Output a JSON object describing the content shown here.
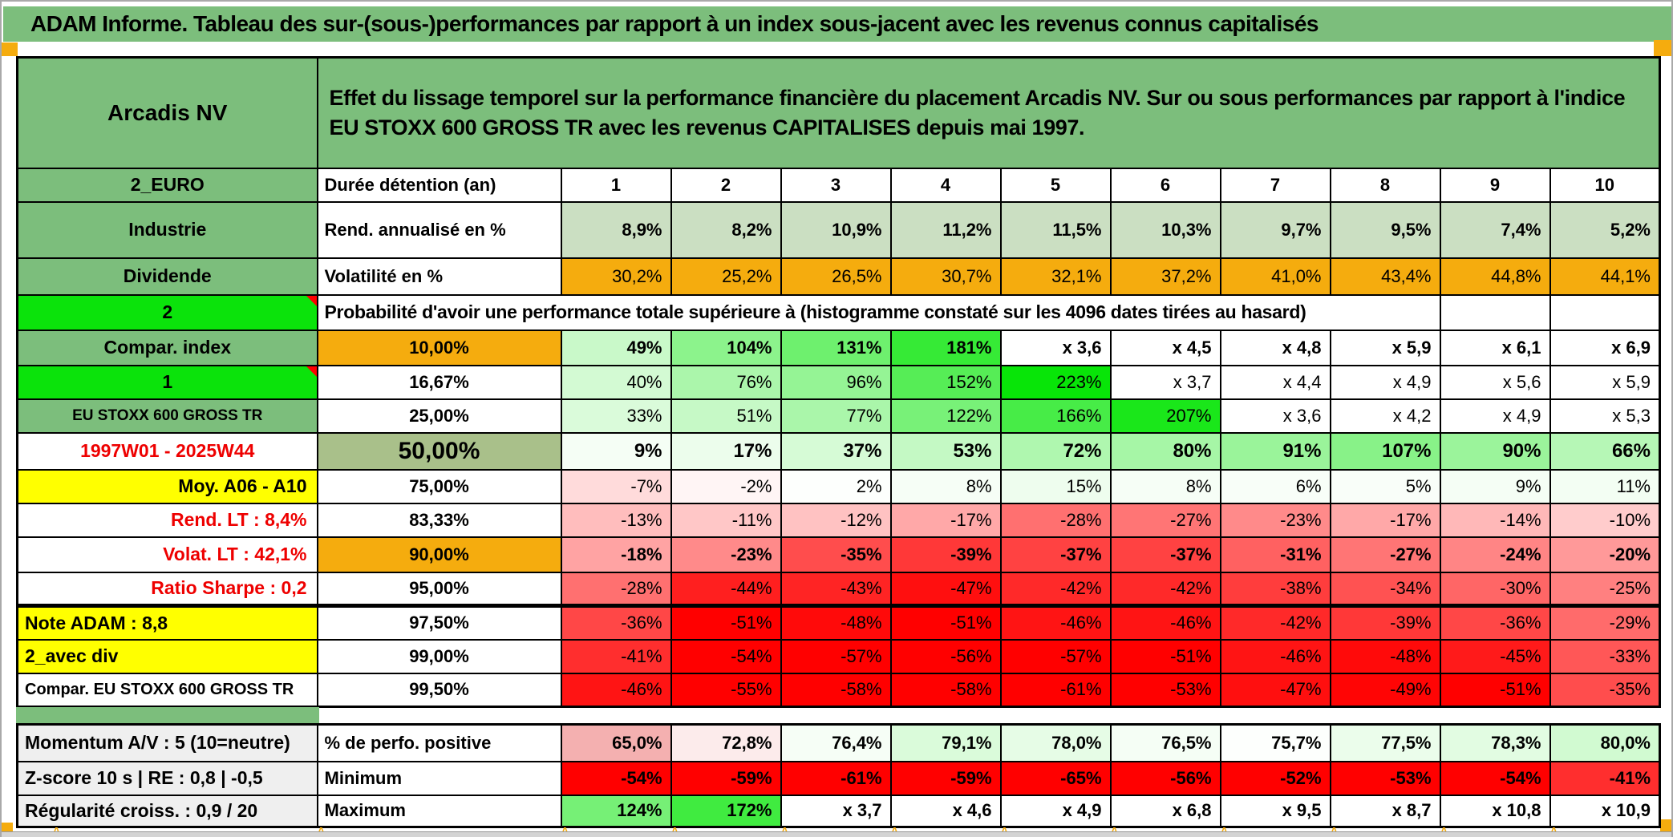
{
  "title": "ADAM Informe. Tableau des sur-(sous-)performances par rapport à un index sous-jacent avec les revenus connus capitalisés",
  "sheet": {
    "instrument": "Arcadis NV",
    "description": "Effet du lissage temporel sur la performance financière du placement Arcadis NV. Sur ou sous performances par rapport à l'indice EU STOXX 600 GROSS TR avec les revenus CAPITALISES depuis mai 1997.",
    "columns": [
      "1",
      "2",
      "3",
      "4",
      "5",
      "6",
      "7",
      "8",
      "9",
      "10"
    ],
    "prob_header": "Probabilité d'avoir une performance totale supérieure à (histogramme constaté sur les 4096 dates tirées au hasard)",
    "rows": [
      {
        "label": "2_EURO",
        "labelBg": "green",
        "header": "Durée détention (an)",
        "headerBg": "white",
        "headerAlign": "left",
        "cells": [
          "1",
          "2",
          "3",
          "4",
          "5",
          "6",
          "7",
          "8",
          "9",
          "10"
        ],
        "fill": "none",
        "bold": true,
        "cellAlign": "center"
      },
      {
        "label": "Industrie",
        "labelBg": "green",
        "header": "Rend. annualisé en %",
        "headerBg": "white",
        "headerAlign": "left",
        "cells": [
          "8,9%",
          "8,2%",
          "10,9%",
          "11,2%",
          "11,5%",
          "10,3%",
          "9,7%",
          "9,5%",
          "7,4%",
          "5,2%"
        ],
        "fill": "sage",
        "bold": true
      },
      {
        "label": "Dividende",
        "labelBg": "green",
        "header": "Volatilité en %",
        "headerBg": "white",
        "headerAlign": "left",
        "cells": [
          "30,2%",
          "25,2%",
          "26,5%",
          "30,7%",
          "32,1%",
          "37,2%",
          "41,0%",
          "43,4%",
          "44,8%",
          "44,1%"
        ],
        "fill": "orange",
        "bold": false
      },
      {
        "label": "2",
        "labelBg": "bright",
        "note": true,
        "span": true,
        "spanCols": 9,
        "tailEmpty": 2
      },
      {
        "label": "Compar. index",
        "labelBg": "green",
        "header": "10,00%",
        "headerBg": "orange",
        "cells": [
          "49%",
          "104%",
          "131%",
          "181%",
          "x 3,6",
          "x 4,5",
          "x 4,8",
          "x 5,9",
          "x 6,1",
          "x 6,9"
        ],
        "fill": "heat",
        "bold": true
      },
      {
        "label": "1",
        "labelBg": "bright",
        "note": true,
        "header": "16,67%",
        "headerBg": "white",
        "cells": [
          "40%",
          "76%",
          "96%",
          "152%",
          "223%",
          "x 3,7",
          "x 4,4",
          "x 4,9",
          "x 5,6",
          "x 5,9"
        ],
        "fill": "heat",
        "bold": false
      },
      {
        "label": "EU STOXX 600 GROSS TR",
        "labelBg": "green",
        "labelSize": 19,
        "header": "25,00%",
        "headerBg": "white",
        "cells": [
          "33%",
          "51%",
          "77%",
          "122%",
          "166%",
          "207%",
          "x 3,6",
          "x 4,2",
          "x 4,9",
          "x 5,3"
        ],
        "fill": "heat",
        "bold": false
      },
      {
        "label": "1997W01 - 2025W44",
        "labelBg": "white",
        "labelColor": "red",
        "header": "50,00%",
        "headerBg": "olive",
        "headerSize": 30,
        "cells": [
          "9%",
          "17%",
          "37%",
          "53%",
          "72%",
          "80%",
          "91%",
          "107%",
          "90%",
          "66%"
        ],
        "fill": "heat",
        "bold": true,
        "cellSize": 24
      },
      {
        "label": "Moy. A06 - A10",
        "labelBg": "yellow",
        "labelAlign": "right",
        "header": "75,00%",
        "headerBg": "white",
        "cells": [
          "-7%",
          "-2%",
          "2%",
          "8%",
          "15%",
          "8%",
          "6%",
          "5%",
          "9%",
          "11%"
        ],
        "fill": "heat",
        "bold": false
      },
      {
        "label": "Rend. LT :  8,4%",
        "labelBg": "white",
        "labelColor": "red",
        "labelAlign": "right",
        "header": "83,33%",
        "headerBg": "white",
        "cells": [
          "-13%",
          "-11%",
          "-12%",
          "-17%",
          "-28%",
          "-27%",
          "-23%",
          "-17%",
          "-14%",
          "-10%"
        ],
        "fill": "heat",
        "bold": false
      },
      {
        "label": "Volat. LT :  42,1%",
        "labelBg": "white",
        "labelColor": "red",
        "labelAlign": "right",
        "header": "90,00%",
        "headerBg": "orange",
        "cells": [
          "-18%",
          "-23%",
          "-35%",
          "-39%",
          "-37%",
          "-37%",
          "-31%",
          "-27%",
          "-24%",
          "-20%"
        ],
        "fill": "heat",
        "bold": true
      },
      {
        "label": "Ratio Sharpe :  0,2",
        "labelBg": "white",
        "labelColor": "red",
        "labelAlign": "right",
        "header": "95,00%",
        "headerBg": "white",
        "cells": [
          "-28%",
          "-44%",
          "-43%",
          "-47%",
          "-42%",
          "-42%",
          "-38%",
          "-34%",
          "-30%",
          "-25%"
        ],
        "fill": "heat",
        "bold": false,
        "thick": true
      },
      {
        "label": "Note ADAM : 8,8",
        "labelBg": "yellow",
        "labelAlign": "left",
        "header": "97,50%",
        "headerBg": "white",
        "cells": [
          "-36%",
          "-51%",
          "-48%",
          "-51%",
          "-46%",
          "-46%",
          "-42%",
          "-39%",
          "-36%",
          "-29%"
        ],
        "fill": "heat",
        "bold": false
      },
      {
        "label": "2_avec div",
        "labelBg": "yellow",
        "labelAlign": "left",
        "header": "99,00%",
        "headerBg": "white",
        "cells": [
          "-41%",
          "-54%",
          "-57%",
          "-56%",
          "-57%",
          "-51%",
          "-46%",
          "-48%",
          "-45%",
          "-33%"
        ],
        "fill": "heat",
        "bold": false
      },
      {
        "label": "Compar. EU STOXX 600 GROSS TR",
        "labelBg": "white",
        "labelAlign": "left",
        "labelSize": 20,
        "header": "99,50%",
        "headerBg": "white",
        "cells": [
          "-46%",
          "-55%",
          "-58%",
          "-58%",
          "-61%",
          "-53%",
          "-47%",
          "-49%",
          "-51%",
          "-35%"
        ],
        "fill": "heat",
        "bold": false
      }
    ],
    "bottom_rows": [
      {
        "label": "Momentum A/V : 5 (10=neutre)",
        "header": "% de perfo. positive",
        "cells": [
          "65,0%",
          "72,8%",
          "76,4%",
          "79,1%",
          "78,0%",
          "76,5%",
          "75,7%",
          "77,5%",
          "78,3%",
          "80,0%"
        ],
        "fill": "perfo",
        "bold": true
      },
      {
        "label": "Z-score 10 s | RE : 0,8 | -0,5",
        "header": "Minimum",
        "cells": [
          "-54%",
          "-59%",
          "-61%",
          "-59%",
          "-65%",
          "-56%",
          "-52%",
          "-53%",
          "-54%",
          "-41%"
        ],
        "fill": "heat",
        "bold": true
      },
      {
        "label": "Régularité croiss. : 0,9 / 20",
        "header": "Maximum",
        "cells": [
          "124%",
          "172%",
          "x 3,7",
          "x 4,6",
          "x 4,9",
          "x 6,8",
          "x 9,5",
          "x 8,7",
          "x 10,8",
          "x 10,9"
        ],
        "fill": "heat",
        "bold": true
      }
    ]
  },
  "colors": {
    "title_green": "#7CBE7C",
    "bright_green": "#0BE30B",
    "sage": "#CBDFC2",
    "orange": "#F5AC0E",
    "olive": "#A9C08A",
    "yellow": "#FFFF00",
    "grey_label": "#EFEFEF",
    "red_text": "#EE0000",
    "heat_green": "#00E400",
    "heat_red": "#FF0000",
    "perfo_pink": "#F09696"
  }
}
